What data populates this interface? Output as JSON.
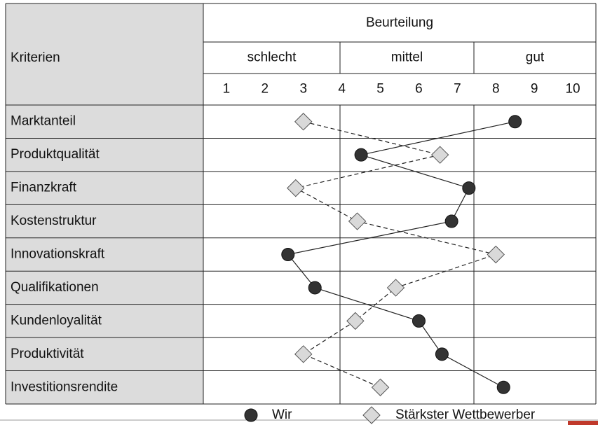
{
  "chart_data": {
    "type": "profile",
    "header": "Beurteilung",
    "row_header": "Kriterien",
    "groups": [
      "schlecht",
      "mittel",
      "gut"
    ],
    "categories": [
      "Marktanteil",
      "Produktqualität",
      "Finanzkraft",
      "Kostenstruktur",
      "Innovationskraft",
      "Qualifikationen",
      "Kundenloyalität",
      "Produktivität",
      "Investitionsrendite"
    ],
    "xlim": [
      0.4,
      10.6
    ],
    "xticks": [
      1,
      2,
      3,
      4,
      5,
      6,
      7,
      8,
      9,
      10
    ],
    "series": [
      {
        "name": "Wir",
        "color": "#333333",
        "marker": "circle",
        "line_style": "solid",
        "values": [
          8.5,
          4.5,
          7.3,
          6.85,
          2.6,
          3.3,
          6.0,
          6.6,
          8.2
        ]
      },
      {
        "name": "Stärkster Wettbewerber",
        "color": "#d9d9d9",
        "marker": "diamond",
        "line_style": "dashed",
        "values": [
          3.0,
          6.55,
          2.8,
          4.4,
          8.0,
          5.4,
          4.35,
          3.0,
          5.0
        ]
      }
    ]
  }
}
